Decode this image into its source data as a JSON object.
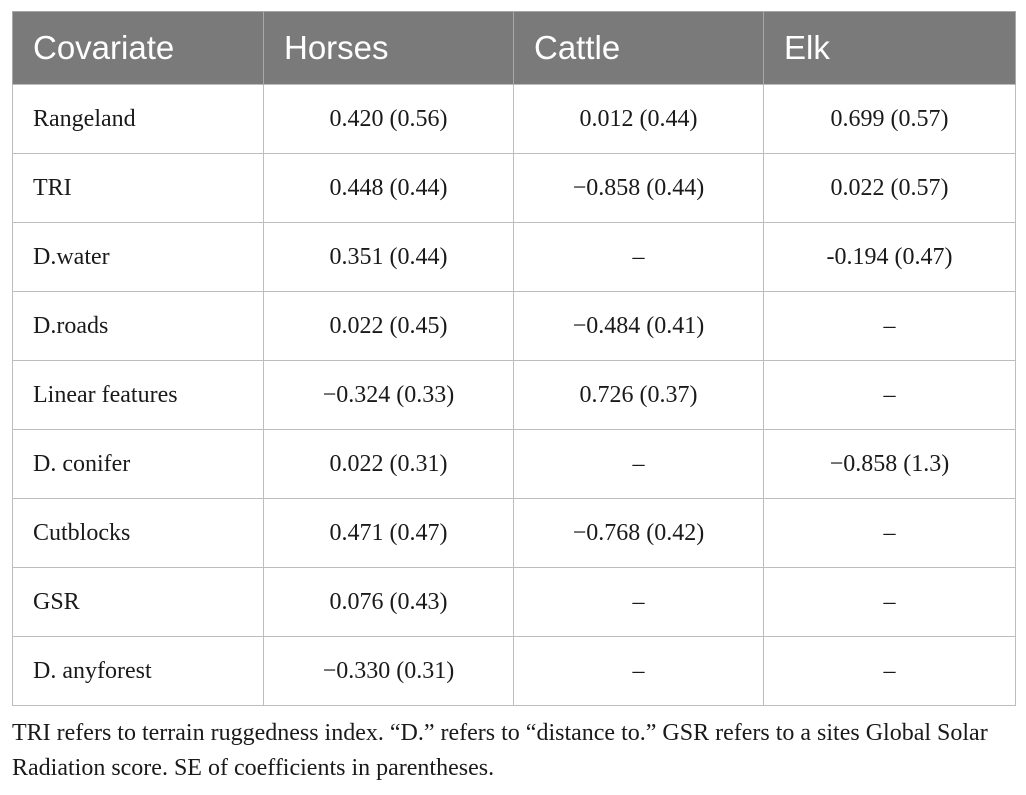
{
  "table": {
    "headers": [
      "Covariate",
      "Horses",
      "Cattle",
      "Elk"
    ],
    "rows": [
      [
        "Rangeland",
        "0.420 (0.56)",
        "0.012 (0.44)",
        "0.699 (0.57)"
      ],
      [
        "TRI",
        "0.448 (0.44)",
        "−0.858 (0.44)",
        "0.022 (0.57)"
      ],
      [
        "D.water",
        "0.351 (0.44)",
        "–",
        "-0.194 (0.47)"
      ],
      [
        "D.roads",
        "0.022 (0.45)",
        "−0.484 (0.41)",
        "–"
      ],
      [
        "Linear features",
        "−0.324 (0.33)",
        "0.726 (0.37)",
        "–"
      ],
      [
        "D. conifer",
        "0.022 (0.31)",
        "–",
        "−0.858 (1.3)"
      ],
      [
        "Cutblocks",
        "0.471 (0.47)",
        "−0.768 (0.42)",
        "–"
      ],
      [
        "GSR",
        "0.076 (0.43)",
        "–",
        "–"
      ],
      [
        "D. anyforest",
        "−0.330 (0.31)",
        "–",
        "–"
      ]
    ]
  },
  "footnote": "TRI refers to terrain ruggedness index. “D.” refers to “distance to.” GSR refers to a sites Global Solar Radiation score. SE of coefficients in parentheses.",
  "colors": {
    "header_bg": "#7a7a7a",
    "header_text": "#ffffff",
    "grid": "#bdbdbd"
  }
}
